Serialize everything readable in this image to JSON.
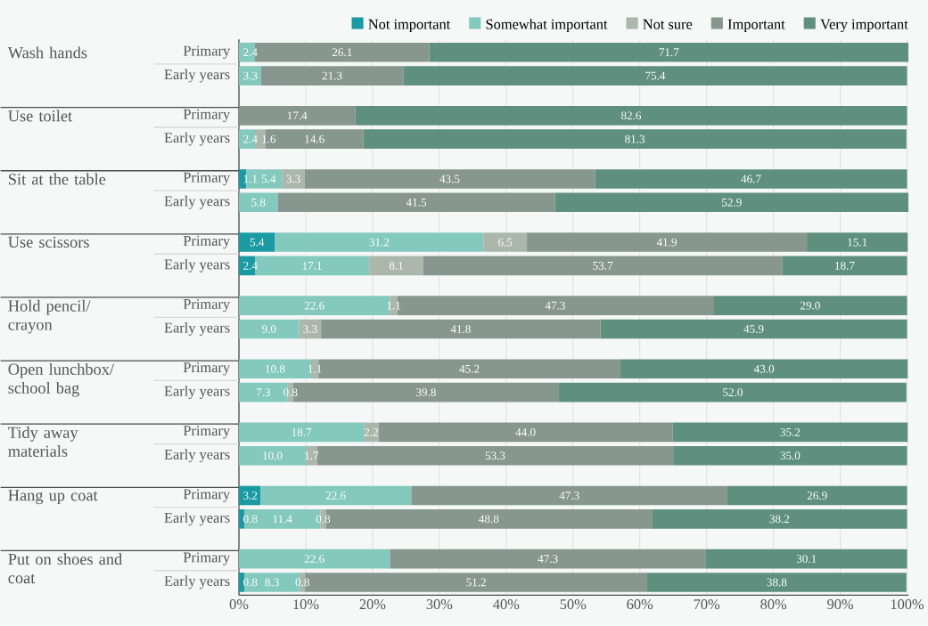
{
  "chart_data": {
    "type": "bar",
    "orientation": "horizontal",
    "stacked": true,
    "categories": [
      "Primary",
      "Early years",
      "Primary",
      "Early years",
      "Primary",
      "Early years",
      "Primary",
      "Early years",
      "Primary",
      "Early years",
      "Primary",
      "Early years",
      "Primary",
      "Early years",
      "Primary",
      "Early years",
      "Primary",
      "Early years"
    ],
    "annotations": [
      "Wash hands",
      "Use toilet",
      "Sit at the table",
      "Use scissors",
      "Hold pencil/ crayon",
      "Open lunchbox/ school bag",
      "Tidy away materials",
      "Hang up coat",
      "Put on shoes and coat"
    ],
    "series": [
      {
        "name": "Not important",
        "color": "#1a9ba3",
        "values": [
          null,
          null,
          null,
          null,
          1.1,
          null,
          5.4,
          2.4,
          null,
          null,
          null,
          null,
          null,
          null,
          3.2,
          0.8,
          null,
          0.8
        ],
        "value_labels": [
          null,
          null,
          null,
          null,
          "1.1",
          null,
          "5.4",
          "2.4",
          null,
          null,
          null,
          null,
          null,
          null,
          "3.2",
          "0.8",
          null,
          "0.8"
        ]
      },
      {
        "name": "Somewhat important",
        "color": "#84c9bd",
        "values": [
          2.4,
          3.3,
          null,
          2.4,
          5.4,
          5.8,
          31.2,
          17.1,
          22.6,
          9.0,
          10.8,
          7.3,
          18.7,
          10.0,
          22.6,
          11.4,
          22.6,
          8.3
        ],
        "value_labels": [
          "2.4",
          "3.3",
          null,
          "2.4",
          "5.4",
          "5.8",
          "31.2",
          "17.1",
          "22.6",
          "9.0",
          "10.8",
          "7.3",
          "18.7",
          "10.0",
          "22.6",
          "11.4",
          "22.6",
          "8.3"
        ]
      },
      {
        "name": "Not sure",
        "color": "#aab7aa",
        "values": [
          null,
          null,
          null,
          1.6,
          3.3,
          null,
          6.5,
          8.1,
          1.1,
          3.3,
          1.1,
          0.8,
          2.2,
          1.7,
          null,
          0.8,
          null,
          0.8
        ],
        "value_labels": [
          null,
          null,
          null,
          "1.6",
          "3.3",
          null,
          "6.5",
          "8.1",
          "1.1",
          "3.3",
          "1.1",
          "0.8",
          "2.2",
          "1.7",
          null,
          "0.8",
          null,
          "0.8"
        ]
      },
      {
        "name": "Important",
        "color": "#87978f",
        "values": [
          26.1,
          21.3,
          17.4,
          14.6,
          43.5,
          41.5,
          41.9,
          53.7,
          47.3,
          41.8,
          45.2,
          39.8,
          44.0,
          53.3,
          47.3,
          48.8,
          47.3,
          51.2
        ],
        "value_labels": [
          "26.1",
          "21.3",
          "17.4",
          "14.6",
          "43.5",
          "41.5",
          "41.9",
          "53.7",
          "47.3",
          "41.8",
          "45.2",
          "39.8",
          "44.0",
          "53.3",
          "47.3",
          "48.8",
          "47.3",
          "51.2"
        ]
      },
      {
        "name": "Very important",
        "color": "#5f907f",
        "values": [
          71.7,
          75.4,
          82.6,
          81.3,
          46.7,
          52.9,
          15.1,
          18.7,
          29.0,
          45.9,
          43.0,
          52.0,
          35.2,
          35.0,
          26.9,
          38.2,
          30.1,
          38.8
        ],
        "value_labels": [
          "71.7",
          "75.4",
          "82.6",
          "81.3",
          "46.7",
          "52.9",
          "15.1",
          "18.7",
          "29.0",
          "45.9",
          "43.0",
          "52.0",
          "35.2",
          "35.0",
          "26.9",
          "38.2",
          "30.1",
          "38.8"
        ]
      }
    ],
    "xlim": [
      0,
      100.2
    ],
    "xticks": [
      {
        "value": 0,
        "label": "0%"
      },
      {
        "value": 10,
        "label": "10%"
      },
      {
        "value": 20,
        "label": "20%"
      },
      {
        "value": 30,
        "label": "30%"
      },
      {
        "value": 40,
        "label": "40%"
      },
      {
        "value": 50,
        "label": "50%"
      },
      {
        "value": 60,
        "label": "60%"
      },
      {
        "value": 70,
        "label": "70%"
      },
      {
        "value": 80,
        "label": "80%"
      },
      {
        "value": 90,
        "label": "90%"
      },
      {
        "value": 100,
        "label": "100%"
      }
    ],
    "grid": "x",
    "legend": "top"
  }
}
